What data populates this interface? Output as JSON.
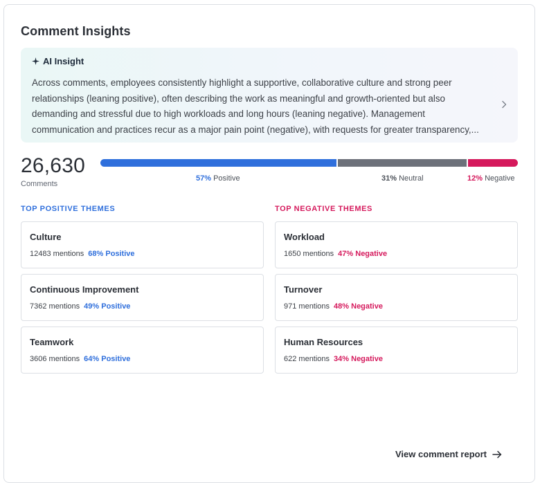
{
  "card": {
    "title": "Comment Insights"
  },
  "ai_insight": {
    "title": "AI Insight",
    "icon": "sparkle-icon",
    "text": "Across comments, employees consistently highlight a supportive, collaborative culture and strong peer relationships (leaning positive), often describing the work as meaningful and growth-oriented but also demanding and stressful due to high workloads and long hours (leaning negative). Management communication and practices recur as a major pain point (negative), with requests for greater transparency,..."
  },
  "summary": {
    "count": "26,630",
    "count_label": "Comments",
    "sentiment": {
      "positive": {
        "pct": "57%",
        "label": "Positive",
        "fraction": 0.57,
        "color": "#2f6fdc"
      },
      "neutral": {
        "pct": "31%",
        "label": "Neutral",
        "fraction": 0.31,
        "color": "#6d717a"
      },
      "negative": {
        "pct": "12%",
        "label": "Negative",
        "fraction": 0.12,
        "color": "#d5195c"
      }
    }
  },
  "positive_themes": {
    "heading": "TOP POSITIVE THEMES",
    "items": [
      {
        "name": "Culture",
        "mentions": "12483 mentions",
        "pct": "68% Positive"
      },
      {
        "name": "Continuous Improvement",
        "mentions": "7362 mentions",
        "pct": "49% Positive"
      },
      {
        "name": "Teamwork",
        "mentions": "3606 mentions",
        "pct": "64% Positive"
      }
    ]
  },
  "negative_themes": {
    "heading": "TOP NEGATIVE THEMES",
    "items": [
      {
        "name": "Workload",
        "mentions": "1650 mentions",
        "pct": "47% Negative"
      },
      {
        "name": "Turnover",
        "mentions": "971 mentions",
        "pct": "48% Negative"
      },
      {
        "name": "Human Resources",
        "mentions": "622 mentions",
        "pct": "34% Negative"
      }
    ]
  },
  "footer": {
    "link_label": "View comment report",
    "icon": "arrow-right-icon"
  }
}
